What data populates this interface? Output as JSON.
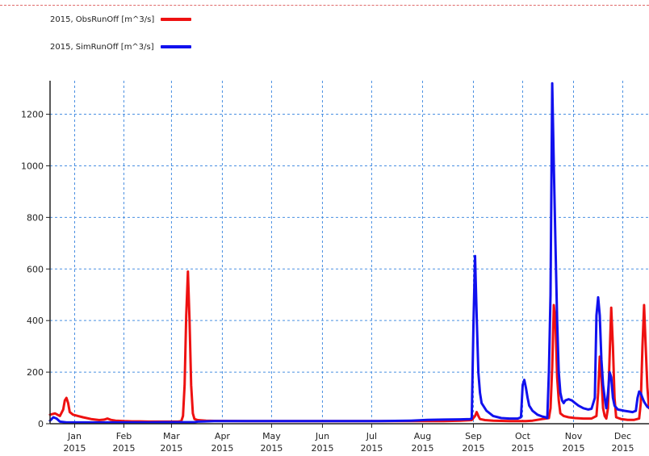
{
  "legend": [
    {
      "label": "2015, ObsRunOff  [m^3/s]",
      "color": "#ee1111"
    },
    {
      "label": "2015, SimRunOff  [m^3/s]",
      "color": "#1111ee"
    }
  ],
  "chart_data": {
    "type": "line",
    "title": "",
    "xlabel": "",
    "ylabel": "",
    "xlim": [
      0,
      365
    ],
    "ylim": [
      0,
      1330
    ],
    "grid": true,
    "legend_position": "top-left",
    "y_ticks": [
      0,
      200,
      400,
      600,
      800,
      1000,
      1200
    ],
    "x_ticks": [
      {
        "month": "Jan",
        "year": "2015",
        "at": 15
      },
      {
        "month": "Feb",
        "year": "2015",
        "at": 45
      },
      {
        "month": "Mar",
        "year": "2015",
        "at": 74
      },
      {
        "month": "Apr",
        "year": "2015",
        "at": 105
      },
      {
        "month": "May",
        "year": "2015",
        "at": 135
      },
      {
        "month": "Jun",
        "year": "2015",
        "at": 166
      },
      {
        "month": "Jul",
        "year": "2015",
        "at": 196
      },
      {
        "month": "Aug",
        "year": "2015",
        "at": 227
      },
      {
        "month": "Sep",
        "year": "2015",
        "at": 258
      },
      {
        "month": "Oct",
        "year": "2015",
        "at": 288
      },
      {
        "month": "Nov",
        "year": "2015",
        "at": 319
      },
      {
        "month": "Dec",
        "year": "2015",
        "at": 349
      }
    ],
    "series": [
      {
        "name": "2015, ObsRunOff  [m^3/s]",
        "color": "#ee1111",
        "points": [
          [
            0,
            35
          ],
          [
            3,
            40
          ],
          [
            6,
            30
          ],
          [
            8,
            55
          ],
          [
            9,
            90
          ],
          [
            10,
            100
          ],
          [
            11,
            80
          ],
          [
            12,
            45
          ],
          [
            14,
            35
          ],
          [
            17,
            30
          ],
          [
            20,
            25
          ],
          [
            25,
            18
          ],
          [
            30,
            14
          ],
          [
            33,
            16
          ],
          [
            35,
            20
          ],
          [
            37,
            15
          ],
          [
            40,
            12
          ],
          [
            45,
            10
          ],
          [
            50,
            9
          ],
          [
            55,
            9
          ],
          [
            60,
            8
          ],
          [
            65,
            8
          ],
          [
            70,
            8
          ],
          [
            78,
            8
          ],
          [
            80,
            10
          ],
          [
            81,
            30
          ],
          [
            82,
            150
          ],
          [
            83,
            420
          ],
          [
            84,
            590
          ],
          [
            85,
            400
          ],
          [
            86,
            150
          ],
          [
            87,
            40
          ],
          [
            88,
            18
          ],
          [
            90,
            14
          ],
          [
            95,
            12
          ],
          [
            100,
            11
          ],
          [
            120,
            10
          ],
          [
            150,
            10
          ],
          [
            180,
            10
          ],
          [
            200,
            10
          ],
          [
            220,
            10
          ],
          [
            240,
            10
          ],
          [
            250,
            12
          ],
          [
            257,
            14
          ],
          [
            259,
            30
          ],
          [
            260,
            45
          ],
          [
            261,
            30
          ],
          [
            262,
            18
          ],
          [
            265,
            14
          ],
          [
            270,
            12
          ],
          [
            280,
            10
          ],
          [
            286,
            10
          ],
          [
            290,
            10
          ],
          [
            294,
            12
          ],
          [
            300,
            18
          ],
          [
            304,
            22
          ],
          [
            305,
            60
          ],
          [
            306,
            220
          ],
          [
            307,
            460
          ],
          [
            308,
            400
          ],
          [
            309,
            180
          ],
          [
            310,
            90
          ],
          [
            311,
            40
          ],
          [
            313,
            30
          ],
          [
            316,
            25
          ],
          [
            320,
            22
          ],
          [
            325,
            20
          ],
          [
            330,
            20
          ],
          [
            333,
            30
          ],
          [
            334,
            120
          ],
          [
            335,
            260
          ],
          [
            336,
            180
          ],
          [
            337,
            60
          ],
          [
            338,
            30
          ],
          [
            339,
            20
          ],
          [
            340,
            60
          ],
          [
            341,
            260
          ],
          [
            342,
            450
          ],
          [
            343,
            300
          ],
          [
            344,
            100
          ],
          [
            345,
            25
          ],
          [
            348,
            18
          ],
          [
            352,
            15
          ],
          [
            356,
            15
          ],
          [
            359,
            20
          ],
          [
            360,
            80
          ],
          [
            361,
            300
          ],
          [
            362,
            460
          ],
          [
            363,
            300
          ],
          [
            364,
            140
          ],
          [
            365,
            60
          ]
        ]
      },
      {
        "name": "2015, SimRunOff  [m^3/s]",
        "color": "#1111ee",
        "points": [
          [
            0,
            12
          ],
          [
            2,
            25
          ],
          [
            4,
            20
          ],
          [
            6,
            8
          ],
          [
            10,
            5
          ],
          [
            20,
            5
          ],
          [
            60,
            5
          ],
          [
            70,
            6
          ],
          [
            80,
            6
          ],
          [
            88,
            6
          ],
          [
            90,
            8
          ],
          [
            100,
            10
          ],
          [
            150,
            10
          ],
          [
            200,
            10
          ],
          [
            220,
            12
          ],
          [
            230,
            15
          ],
          [
            240,
            16
          ],
          [
            250,
            17
          ],
          [
            256,
            18
          ],
          [
            257,
            20
          ],
          [
            258,
            380
          ],
          [
            259,
            650
          ],
          [
            260,
            420
          ],
          [
            261,
            200
          ],
          [
            262,
            120
          ],
          [
            263,
            80
          ],
          [
            266,
            50
          ],
          [
            270,
            30
          ],
          [
            275,
            22
          ],
          [
            280,
            20
          ],
          [
            285,
            20
          ],
          [
            287,
            25
          ],
          [
            288,
            150
          ],
          [
            289,
            170
          ],
          [
            290,
            140
          ],
          [
            291,
            100
          ],
          [
            292,
            70
          ],
          [
            294,
            50
          ],
          [
            297,
            35
          ],
          [
            300,
            28
          ],
          [
            302,
            25
          ],
          [
            303,
            22
          ],
          [
            304,
            200
          ],
          [
            305,
            500
          ],
          [
            306,
            1320
          ],
          [
            307,
            1000
          ],
          [
            308,
            700
          ],
          [
            309,
            400
          ],
          [
            310,
            200
          ],
          [
            311,
            120
          ],
          [
            312,
            90
          ],
          [
            313,
            80
          ],
          [
            314,
            90
          ],
          [
            316,
            95
          ],
          [
            318,
            90
          ],
          [
            320,
            80
          ],
          [
            322,
            70
          ],
          [
            325,
            60
          ],
          [
            328,
            55
          ],
          [
            330,
            58
          ],
          [
            332,
            100
          ],
          [
            333,
            420
          ],
          [
            334,
            490
          ],
          [
            335,
            420
          ],
          [
            336,
            250
          ],
          [
            337,
            150
          ],
          [
            338,
            100
          ],
          [
            339,
            60
          ],
          [
            340,
            120
          ],
          [
            341,
            200
          ],
          [
            342,
            180
          ],
          [
            343,
            100
          ],
          [
            344,
            70
          ],
          [
            346,
            55
          ],
          [
            350,
            50
          ],
          [
            355,
            45
          ],
          [
            357,
            50
          ],
          [
            358,
            100
          ],
          [
            359,
            125
          ],
          [
            360,
            118
          ],
          [
            361,
            100
          ],
          [
            362,
            85
          ],
          [
            363,
            75
          ],
          [
            364,
            65
          ],
          [
            365,
            62
          ]
        ]
      }
    ]
  }
}
